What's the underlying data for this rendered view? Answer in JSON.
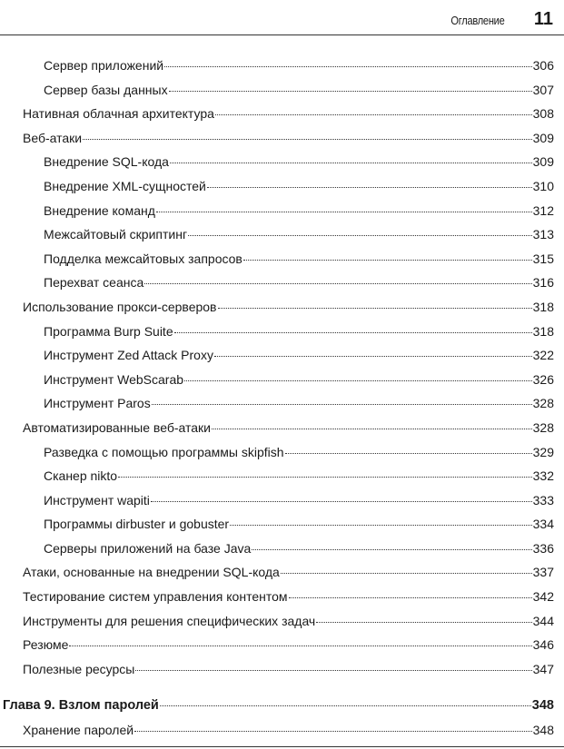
{
  "header": {
    "section": "Оглавление",
    "page_number": "11"
  },
  "entries": [
    {
      "level": 2,
      "title": "Сервер приложений",
      "page": "306"
    },
    {
      "level": 2,
      "title": "Сервер базы данных",
      "page": "307"
    },
    {
      "level": 1,
      "title": "Нативная облачная архитектура",
      "page": "308"
    },
    {
      "level": 1,
      "title": "Веб-атаки",
      "page": "309"
    },
    {
      "level": 2,
      "title": "Внедрение SQL-кода",
      "page": "309"
    },
    {
      "level": 2,
      "title": "Внедрение XML-сущностей",
      "page": "310"
    },
    {
      "level": 2,
      "title": "Внедрение команд",
      "page": "312"
    },
    {
      "level": 2,
      "title": "Межсайтовый скриптинг",
      "page": "313"
    },
    {
      "level": 2,
      "title": "Подделка межсайтовых запросов",
      "page": "315"
    },
    {
      "level": 2,
      "title": "Перехват сеанса",
      "page": "316"
    },
    {
      "level": 1,
      "title": "Использование прокси-серверов",
      "page": "318"
    },
    {
      "level": 2,
      "title": "Программа Burp Suite",
      "page": "318"
    },
    {
      "level": 2,
      "title": "Инструмент Zed Attack Proxy",
      "page": "322"
    },
    {
      "level": 2,
      "title": "Инструмент WebScarab",
      "page": "326"
    },
    {
      "level": 2,
      "title": "Инструмент Paros",
      "page": "328"
    },
    {
      "level": 1,
      "title": "Автоматизированные веб-атаки",
      "page": "328"
    },
    {
      "level": 2,
      "title": "Разведка с помощью программы skipfish",
      "page": "329"
    },
    {
      "level": 2,
      "title": "Сканер nikto",
      "page": "332"
    },
    {
      "level": 2,
      "title": "Инструмент wapiti",
      "page": "333"
    },
    {
      "level": 2,
      "title": "Программы dirbuster и gobuster",
      "page": "334"
    },
    {
      "level": 2,
      "title": "Серверы приложений на базе Java",
      "page": "336"
    },
    {
      "level": 1,
      "title": "Атаки, основанные на внедрении SQL-кода",
      "page": "337"
    },
    {
      "level": 1,
      "title": "Тестирование систем управления контентом",
      "page": "342"
    },
    {
      "level": 1,
      "title": "Инструменты для решения специфических задач",
      "page": "344"
    },
    {
      "level": 1,
      "title": "Резюме",
      "page": "346"
    },
    {
      "level": 1,
      "title": "Полезные ресурсы",
      "page": "347"
    },
    {
      "level": 0,
      "title": "Глава 9. Взлом паролей",
      "page": "348"
    },
    {
      "level": 1,
      "title": "Хранение паролей",
      "page": "348"
    }
  ]
}
